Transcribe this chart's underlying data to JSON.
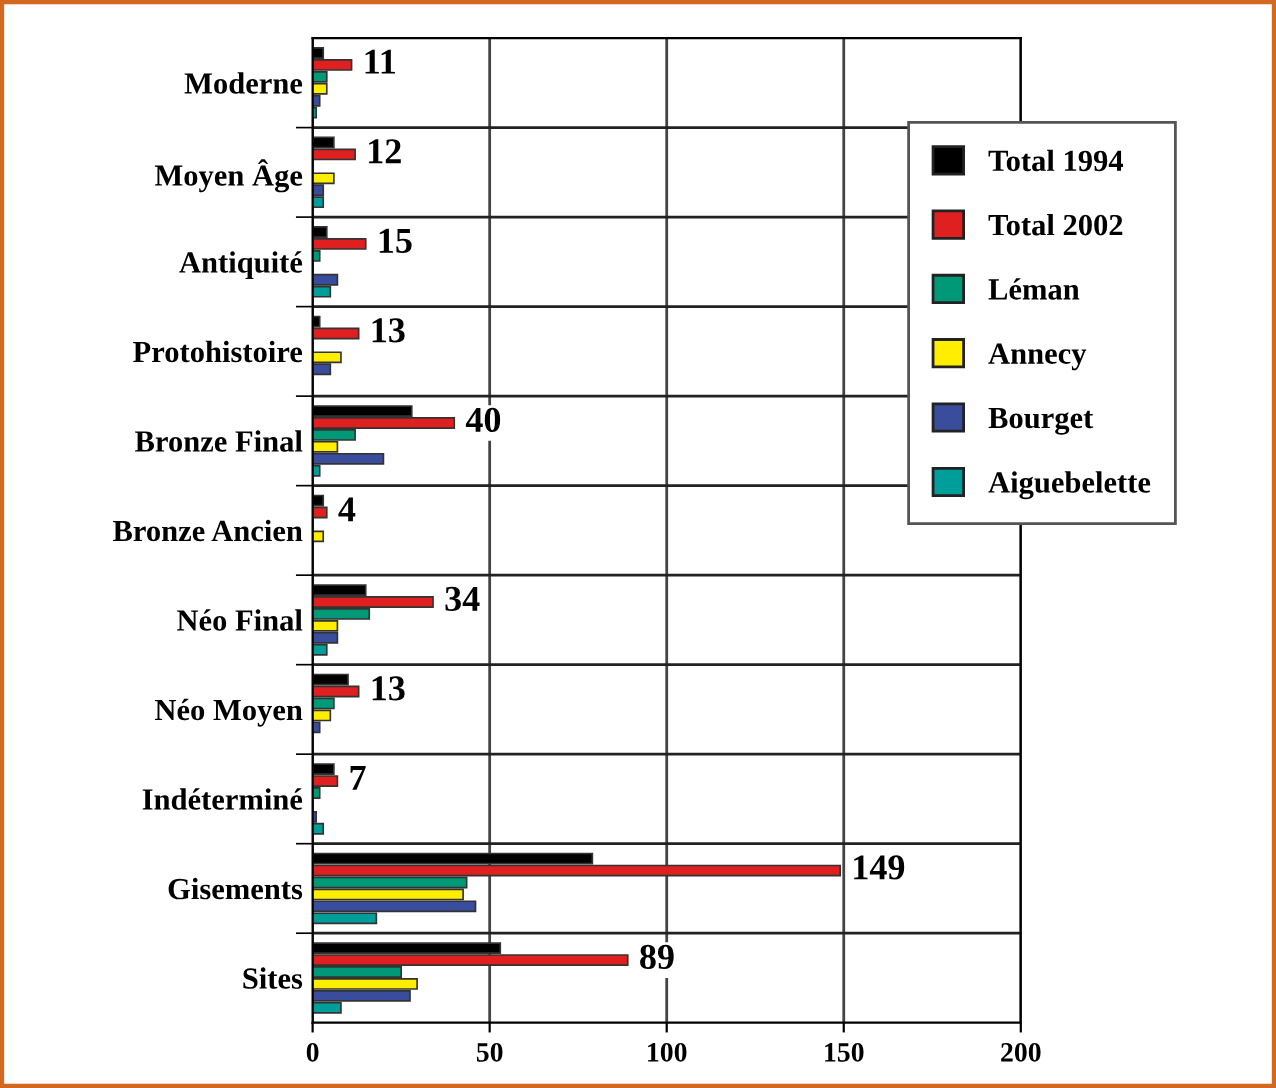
{
  "chart_data": {
    "type": "bar",
    "orientation": "horizontal",
    "categories": [
      "Moderne",
      "Moyen Âge",
      "Antiquité",
      "Protohistoire",
      "Bronze Final",
      "Bronze Ancien",
      "Néo Final",
      "Néo Moyen",
      "Indéterminé",
      "Gisements",
      "Sites"
    ],
    "series": [
      {
        "name": "Total 1994",
        "color": "#000000",
        "values": [
          3,
          6,
          4,
          2,
          28,
          3,
          15,
          10,
          6,
          79,
          53
        ]
      },
      {
        "name": "Total 2002",
        "color": "#e02020",
        "values": [
          11,
          12,
          15,
          13,
          40,
          4,
          34,
          13,
          7,
          149,
          89
        ],
        "value_labels": [
          "11",
          "12",
          "15",
          "13",
          "40",
          "4",
          "34",
          "13",
          "7",
          "149",
          "89"
        ]
      },
      {
        "name": "Léman",
        "color": "#009977",
        "values": [
          4,
          0,
          2,
          0,
          12,
          null,
          16,
          6,
          2,
          43.5,
          25
        ]
      },
      {
        "name": "Annecy",
        "color": "#ffee00",
        "values": [
          4,
          6,
          null,
          8,
          7,
          3,
          7,
          5,
          null,
          42.5,
          29.5
        ]
      },
      {
        "name": "Bourget",
        "color": "#3a4c9c",
        "values": [
          2,
          3,
          7,
          5,
          20,
          0,
          7,
          2,
          1,
          46,
          27.5
        ]
      },
      {
        "name": "Aiguebelette",
        "color": "#009e9a",
        "values": [
          1,
          3,
          5,
          0,
          2,
          0,
          4,
          0,
          3,
          18,
          8
        ]
      }
    ],
    "xlim": [
      0,
      200
    ],
    "xticks": [
      0,
      50,
      100,
      150,
      200
    ],
    "grid": true,
    "legend": "top right"
  }
}
